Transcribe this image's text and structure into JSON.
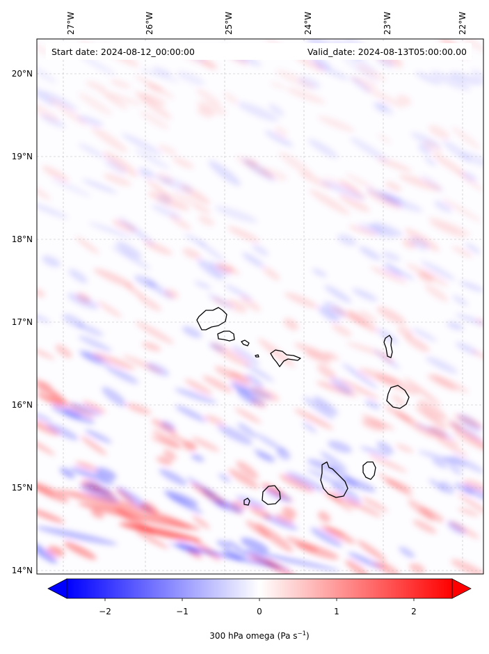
{
  "header": {
    "start_date": "Start date: 2024-08-12_00:00:00",
    "valid_date": "Valid_date: 2024-08-13T05:00:00.00"
  },
  "map": {
    "lon_labels": [
      "27°W",
      "26°W",
      "25°W",
      "24°W",
      "23°W",
      "22°W"
    ],
    "lat_labels": [
      "20°N",
      "19°N",
      "18°N",
      "17°N",
      "16°N",
      "15°N",
      "14°N"
    ],
    "gridlines": "dashed",
    "islands": [
      "Santo Antão",
      "São Vicente",
      "Santa Luzia",
      "Branco",
      "São Nicolau",
      "Sal",
      "Boa Vista",
      "Maio",
      "Santiago",
      "Fogo",
      "Brava"
    ]
  },
  "colorbar": {
    "ticks": [
      "−2",
      "−1",
      "0",
      "1",
      "2"
    ],
    "label_main": "300 hPa omega (Pa s",
    "label_sup": "−1",
    "label_end": ")",
    "min_color": "#0000ff",
    "mid_color": "#ffffff",
    "max_color": "#ff0000",
    "extend": "both"
  },
  "colors": {
    "ascent": "#0000ff",
    "descent": "#ff0000",
    "coastline": "#000000"
  }
}
